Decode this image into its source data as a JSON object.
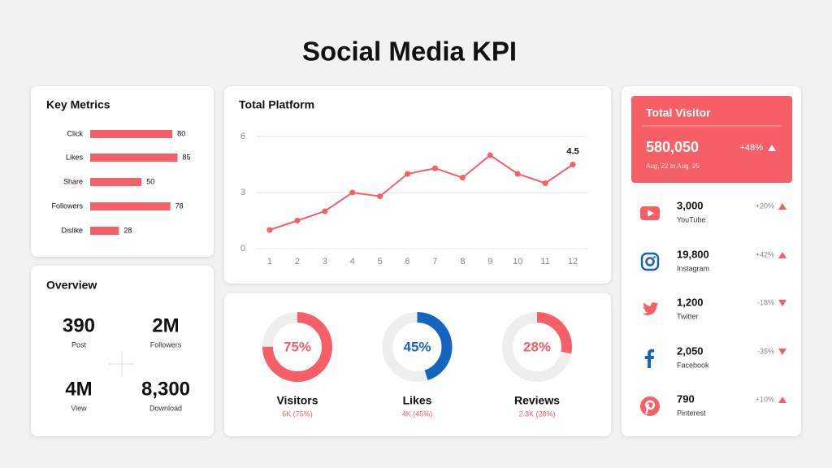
{
  "title": "Social Media KPI",
  "chart_data": [
    {
      "type": "bar",
      "title": "Key Metrics",
      "orientation": "horizontal",
      "categories": [
        "Click",
        "Likes",
        "Share",
        "Followers",
        "Dislike"
      ],
      "values": [
        80,
        85,
        50,
        78,
        28
      ],
      "color": "#f65f66"
    },
    {
      "type": "line",
      "title": "Total Platform",
      "x": [
        1,
        2,
        3,
        4,
        5,
        6,
        7,
        8,
        9,
        10,
        11,
        12
      ],
      "values": [
        1,
        1.5,
        2,
        3,
        2.8,
        4,
        4.3,
        3.8,
        5,
        4,
        3.5,
        4.5
      ],
      "color": "#f65f66",
      "xlim": [
        0.5,
        12.5
      ],
      "xticks": [
        1,
        2,
        3,
        4,
        5,
        6,
        7,
        8,
        9,
        10,
        11,
        12
      ],
      "ylim": [
        0,
        6
      ],
      "yticks": [
        0,
        3,
        6
      ],
      "grid": true
    },
    {
      "type": "donut",
      "title": "Visitors",
      "values": [
        75
      ],
      "value_labels": [
        "75%"
      ],
      "subtitle": "6K (75%)",
      "color": "#f65f66"
    },
    {
      "type": "donut",
      "title": "Likes",
      "values": [
        45
      ],
      "value_labels": [
        "45%"
      ],
      "subtitle": "4K (45%)",
      "color": "#1565c0"
    },
    {
      "type": "donut",
      "title": "Reviews",
      "values": [
        28
      ],
      "value_labels": [
        "28%"
      ],
      "subtitle": "2.3K (28%)",
      "color": "#f65f66"
    }
  ],
  "overview": {
    "title": "Overview",
    "items": [
      {
        "value": "390",
        "label": "Post"
      },
      {
        "value": "2M",
        "label": "Followers"
      },
      {
        "value": "4M",
        "label": "View"
      },
      {
        "value": "8,300",
        "label": "Download"
      }
    ]
  },
  "visitor": {
    "title": "Total Visitor",
    "value": "580,050",
    "change": "+48%",
    "trend": "up",
    "period": "Aug, 22 to Aug, 25"
  },
  "platforms": [
    {
      "value": "3,000",
      "name": "YouTube",
      "change": "+20%",
      "trend": "up"
    },
    {
      "value": "19,800",
      "name": "Instagram",
      "change": "+42%",
      "trend": "up"
    },
    {
      "value": "1,200",
      "name": "Twitter",
      "change": "-18%",
      "trend": "down"
    },
    {
      "value": "2,050",
      "name": "Facebook",
      "change": "-35%",
      "trend": "down"
    },
    {
      "value": "790",
      "name": "Pinterest",
      "change": "+10%",
      "trend": "up"
    }
  ]
}
